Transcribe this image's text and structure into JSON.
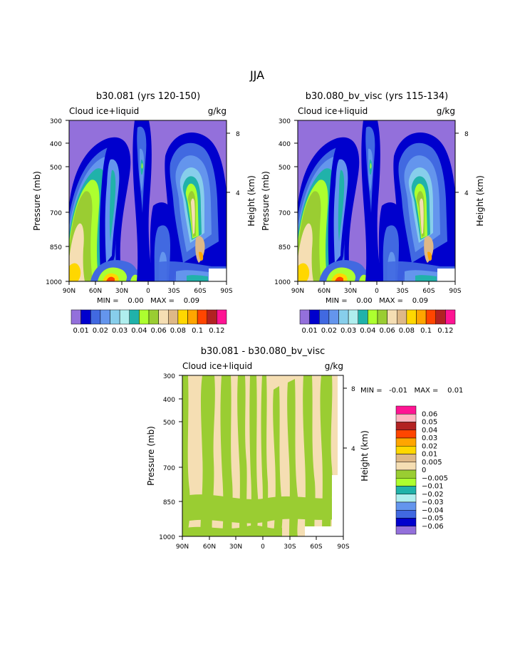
{
  "page_title": "JJA",
  "colors": {
    "l1": "#9370db",
    "l2": "#0000cd",
    "l3": "#4169e1",
    "l4": "#6495ed",
    "l5": "#87ceeb",
    "l6": "#afeeee",
    "l7": "#20b2aa",
    "l8": "#adff2f",
    "l9": "#9acd32",
    "l10": "#f5deb3",
    "l11": "#deb887",
    "l12": "#ffd700",
    "l13": "#ffa500",
    "l14": "#ff4500",
    "l15": "#b22222",
    "l16": "#ffb6c1",
    "l17": "#ff1493"
  },
  "chart_data": [
    {
      "type": "heatmap",
      "title": "b30.081 (yrs 120-150)",
      "field": "Cloud ice+liquid",
      "units": "g/kg",
      "xlabel": "",
      "ylabel": "Pressure (mb)",
      "y2label": "Height (km)",
      "x_ticks": [
        "90N",
        "60N",
        "30N",
        "0",
        "30S",
        "60S",
        "90S"
      ],
      "y_ticks": [
        "300",
        "400",
        "500",
        "700",
        "850",
        "1000"
      ],
      "y2_ticks": [
        "8",
        "4"
      ],
      "stats": "MIN =    0.00   MAX =    0.09",
      "colorbar_labels": [
        "0.01",
        "0.02",
        "0.03",
        "0.04",
        "0.06",
        "0.08",
        "0.1",
        "0.12"
      ],
      "levels": [
        0.01,
        0.015,
        0.02,
        0.025,
        0.03,
        0.035,
        0.04,
        0.05,
        0.06,
        0.07,
        0.08,
        0.09,
        0.1,
        0.11,
        0.12
      ]
    },
    {
      "type": "heatmap",
      "title": "b30.080_bv_visc (yrs 115-134)",
      "field": "Cloud ice+liquid",
      "units": "g/kg",
      "xlabel": "",
      "ylabel": "Pressure (mb)",
      "y2label": "Height (km)",
      "x_ticks": [
        "90N",
        "60N",
        "30N",
        "0",
        "30S",
        "60S",
        "90S"
      ],
      "y_ticks": [
        "300",
        "400",
        "500",
        "700",
        "850",
        "1000"
      ],
      "y2_ticks": [
        "8",
        "4"
      ],
      "stats": "MIN =    0.00   MAX =    0.09",
      "colorbar_labels": [
        "0.01",
        "0.02",
        "0.03",
        "0.04",
        "0.06",
        "0.08",
        "0.1",
        "0.12"
      ],
      "levels": [
        0.01,
        0.015,
        0.02,
        0.025,
        0.03,
        0.035,
        0.04,
        0.05,
        0.06,
        0.07,
        0.08,
        0.09,
        0.1,
        0.11,
        0.12
      ]
    },
    {
      "type": "heatmap",
      "title": "b30.081 - b30.080_bv_visc",
      "field": "Cloud ice+liquid",
      "units": "g/kg",
      "xlabel": "",
      "ylabel": "Pressure (mb)",
      "y2label": "Height (km)",
      "x_ticks": [
        "90N",
        "60N",
        "30N",
        "0",
        "30S",
        "60S",
        "90S"
      ],
      "y_ticks": [
        "300",
        "400",
        "500",
        "700",
        "850",
        "1000"
      ],
      "y2_ticks": [
        "8",
        "4"
      ],
      "stats": "MIN =   -0.01   MAX =    0.01",
      "colorbar_labels": [
        "0.06",
        "0.05",
        "0.04",
        "0.03",
        "0.02",
        "0.01",
        "0.005",
        "0",
        "-0.005",
        "-0.01",
        "-0.02",
        "-0.03",
        "-0.04",
        "-0.05",
        "-0.06"
      ]
    }
  ]
}
